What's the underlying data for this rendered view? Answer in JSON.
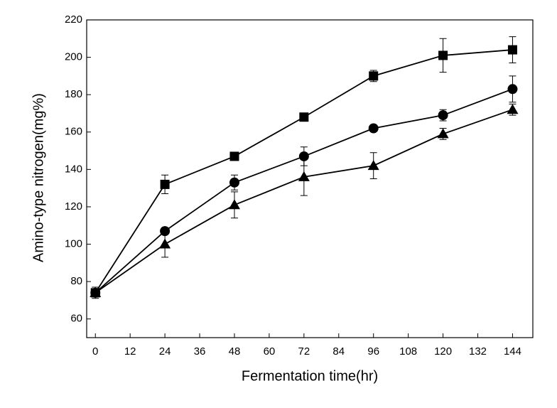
{
  "chart_data": {
    "type": "line",
    "x_label": "Fermentation time(hr)",
    "y_label": "Amino-type nitrogen(mg%)",
    "x": [
      0,
      24,
      48,
      72,
      96,
      120,
      144
    ],
    "series": [
      {
        "marker": "square",
        "color": "#000000",
        "values": [
          74,
          132,
          147,
          168,
          190,
          201,
          204
        ],
        "errors": [
          2,
          5,
          1,
          1,
          3,
          9,
          7
        ]
      },
      {
        "marker": "circle",
        "color": "#000000",
        "values": [
          74,
          107,
          133,
          147,
          162,
          169,
          183
        ],
        "errors": [
          2,
          1,
          4,
          5,
          1,
          3,
          7
        ]
      },
      {
        "marker": "triangle",
        "color": "#000000",
        "values": [
          74,
          100,
          121,
          136,
          142,
          159,
          172
        ],
        "errors": [
          3,
          7,
          7,
          10,
          7,
          3,
          3
        ]
      }
    ],
    "xlim": [
      -3,
      151
    ],
    "xticks": [
      0,
      12,
      24,
      36,
      48,
      60,
      72,
      84,
      96,
      108,
      120,
      132,
      144
    ],
    "ylim": [
      50,
      220
    ],
    "yticks": [
      60,
      80,
      100,
      120,
      140,
      160,
      180,
      200,
      220
    ]
  }
}
